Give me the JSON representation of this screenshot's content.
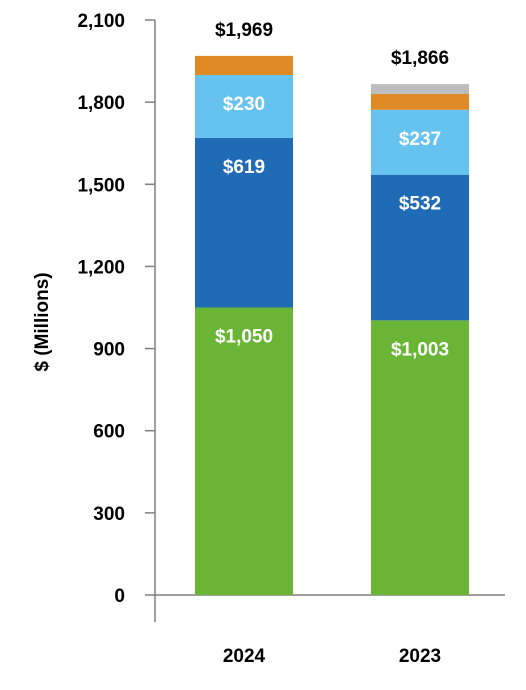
{
  "chart_data": {
    "type": "bar",
    "stacked": true,
    "ylabel": "$ (Millions)",
    "xlabel": "",
    "ylim": [
      0,
      2100
    ],
    "yticks": [
      0,
      300,
      600,
      900,
      1200,
      1500,
      1800,
      2100
    ],
    "ytick_labels": [
      "0",
      "300",
      "600",
      "900",
      "1,200",
      "1,500",
      "1,800",
      "2,100"
    ],
    "categories": [
      "2024",
      "2023"
    ],
    "totals": [
      1969,
      1866
    ],
    "total_labels": [
      "$1,969",
      "$1,866"
    ],
    "grid": false,
    "series": [
      {
        "color": "#6BB536",
        "values": [
          1050,
          1003
        ],
        "labels": [
          "$1,050",
          "$1,003"
        ]
      },
      {
        "color": "#1F6BB5",
        "values": [
          619,
          532
        ],
        "labels": [
          "$619",
          "$532"
        ]
      },
      {
        "color": "#66C3F0",
        "values": [
          230,
          237
        ],
        "labels": [
          "$230",
          "$237"
        ]
      },
      {
        "color": "#E08A25",
        "values": [
          70,
          58
        ],
        "labels": [
          "",
          ""
        ]
      },
      {
        "color": "#BDBDBD",
        "values": [
          0,
          36
        ],
        "labels": [
          "",
          ""
        ]
      }
    ]
  }
}
